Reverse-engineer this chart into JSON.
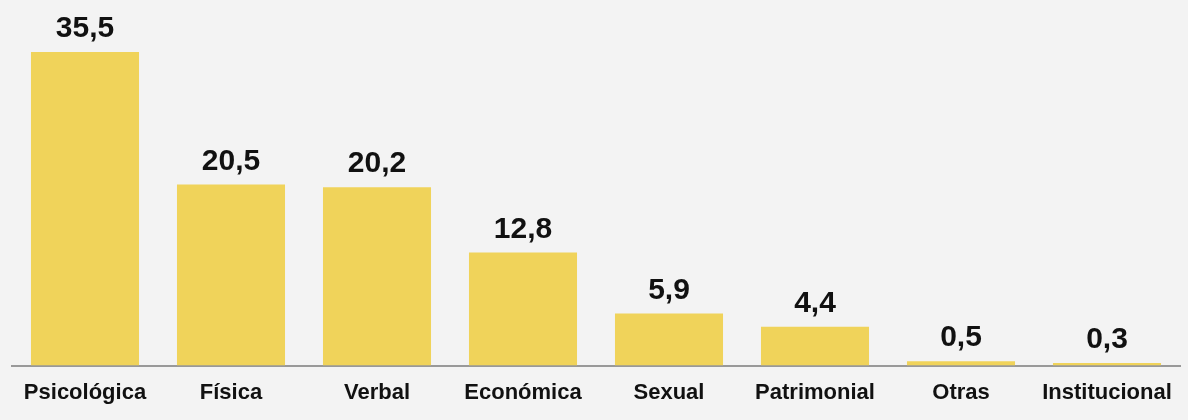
{
  "chart_data": {
    "type": "bar",
    "categories": [
      "Psicológica",
      "Física",
      "Verbal",
      "Económica",
      "Sexual",
      "Patrimonial",
      "Otras",
      "Institucional"
    ],
    "values": [
      35.5,
      20.5,
      20.2,
      12.8,
      5.9,
      4.4,
      0.5,
      0.3
    ],
    "value_labels": [
      "35,5",
      "20,5",
      "20,2",
      "12,8",
      "5,9",
      "4,4",
      "0,5",
      "0,3"
    ],
    "color": "#f0d35a",
    "grid": false,
    "legend": false
  }
}
